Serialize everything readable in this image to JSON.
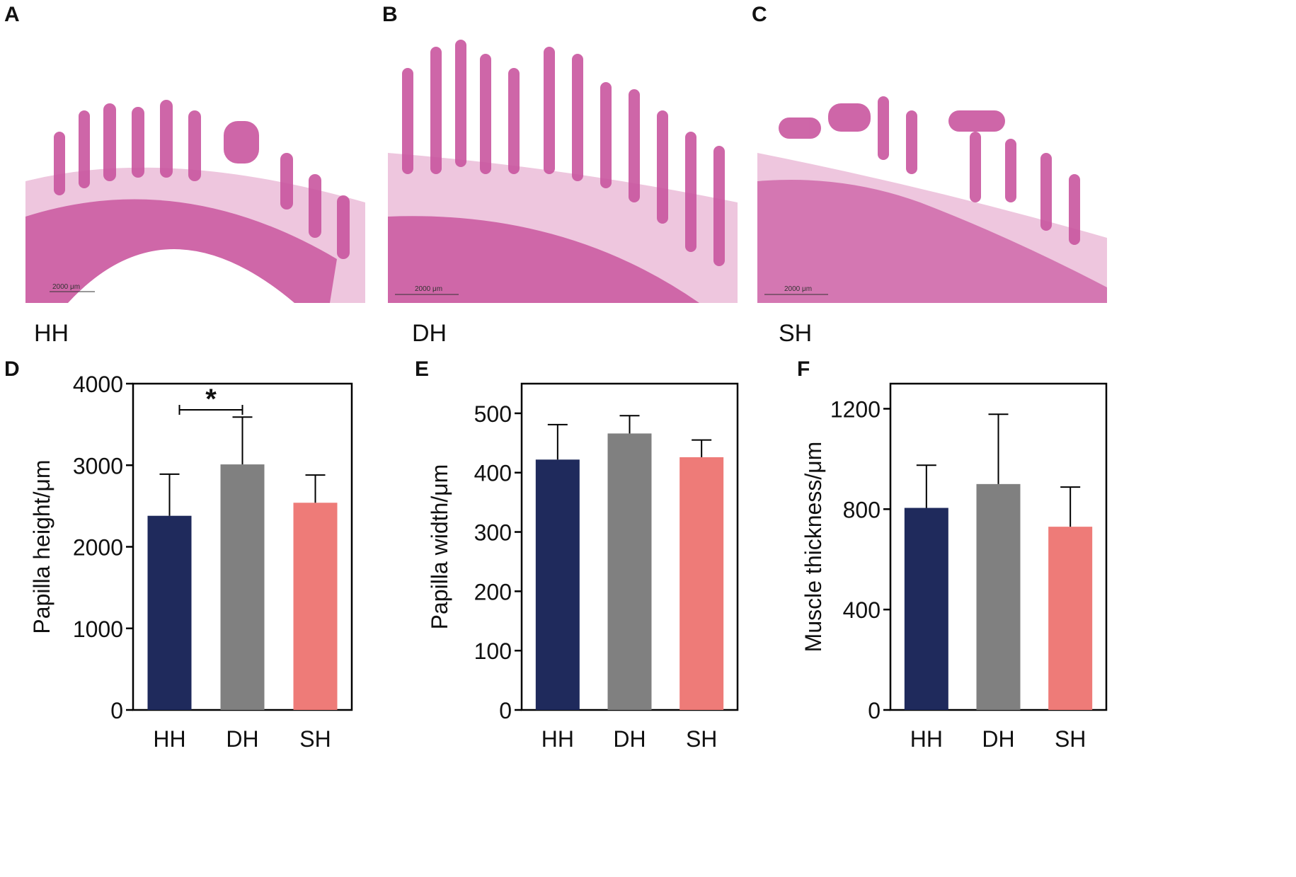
{
  "panel_letters": {
    "A": "A",
    "B": "B",
    "C": "C",
    "D": "D",
    "E": "E",
    "F": "F"
  },
  "micrographs": [
    {
      "caption": "HH",
      "scale_bar": "2000 μm"
    },
    {
      "caption": "DH",
      "scale_bar": "2000 μm"
    },
    {
      "caption": "SH",
      "scale_bar": "2000 μm"
    }
  ],
  "colors": {
    "HH": "#1f2a5c",
    "DH": "#808080",
    "SH": "#ee7b78",
    "tissue": "#c9569f"
  },
  "chart_data": [
    {
      "type": "bar",
      "categories": [
        "HH",
        "DH",
        "SH"
      ],
      "values": [
        2380,
        3010,
        2540
      ],
      "error": [
        510,
        580,
        340
      ],
      "ylabel": "Papilla height/μm",
      "ylim": [
        0,
        4000
      ],
      "yticks": [
        0,
        1000,
        2000,
        3000,
        4000
      ],
      "significance": {
        "from": "HH",
        "to": "DH",
        "label": "*"
      }
    },
    {
      "type": "bar",
      "categories": [
        "HH",
        "DH",
        "SH"
      ],
      "values": [
        422,
        466,
        426
      ],
      "error": [
        59,
        30,
        29
      ],
      "ylabel": "Papilla width/μm",
      "ylim": [
        0,
        550
      ],
      "yticks": [
        0,
        100,
        200,
        300,
        400,
        500
      ]
    },
    {
      "type": "bar",
      "categories": [
        "HH",
        "DH",
        "SH"
      ],
      "values": [
        805,
        900,
        730
      ],
      "error": [
        170,
        278,
        158
      ],
      "ylabel": "Muscle thickness/μm",
      "ylim": [
        0,
        1300
      ],
      "yticks": [
        0,
        400,
        800,
        1200
      ]
    }
  ]
}
